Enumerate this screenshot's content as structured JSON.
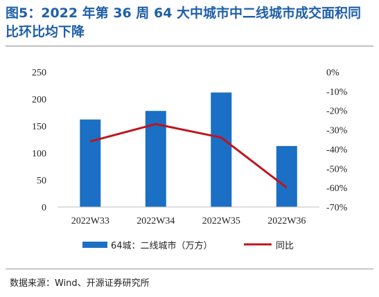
{
  "title": "图5：2022 年第 36 周 64 大中城市中二线城市成交面积同比环比均下降",
  "source": "数据来源：Wind、开源证券研究所",
  "chart_data": {
    "type": "bar",
    "categories": [
      "2022W33",
      "2022W34",
      "2022W35",
      "2022W36"
    ],
    "series": [
      {
        "name": "64城：二线城市（万方）",
        "type": "bar",
        "axis": "left",
        "color": "#1b6fc4",
        "values": [
          162,
          178,
          212,
          113
        ]
      },
      {
        "name": "同比",
        "type": "line",
        "axis": "right",
        "color": "#c0141b",
        "values": [
          -36,
          -27,
          -34,
          -60
        ]
      }
    ],
    "left_axis": {
      "ylim": [
        0,
        250
      ],
      "ticks": [
        "0",
        "50",
        "100",
        "150",
        "200",
        "250"
      ]
    },
    "right_axis": {
      "ylim": [
        -70,
        0
      ],
      "ticks": [
        "0%",
        "-10%",
        "-20%",
        "-30%",
        "-40%",
        "-50%",
        "-60%",
        "-70%"
      ]
    },
    "legend_position": "bottom",
    "grid": false
  }
}
